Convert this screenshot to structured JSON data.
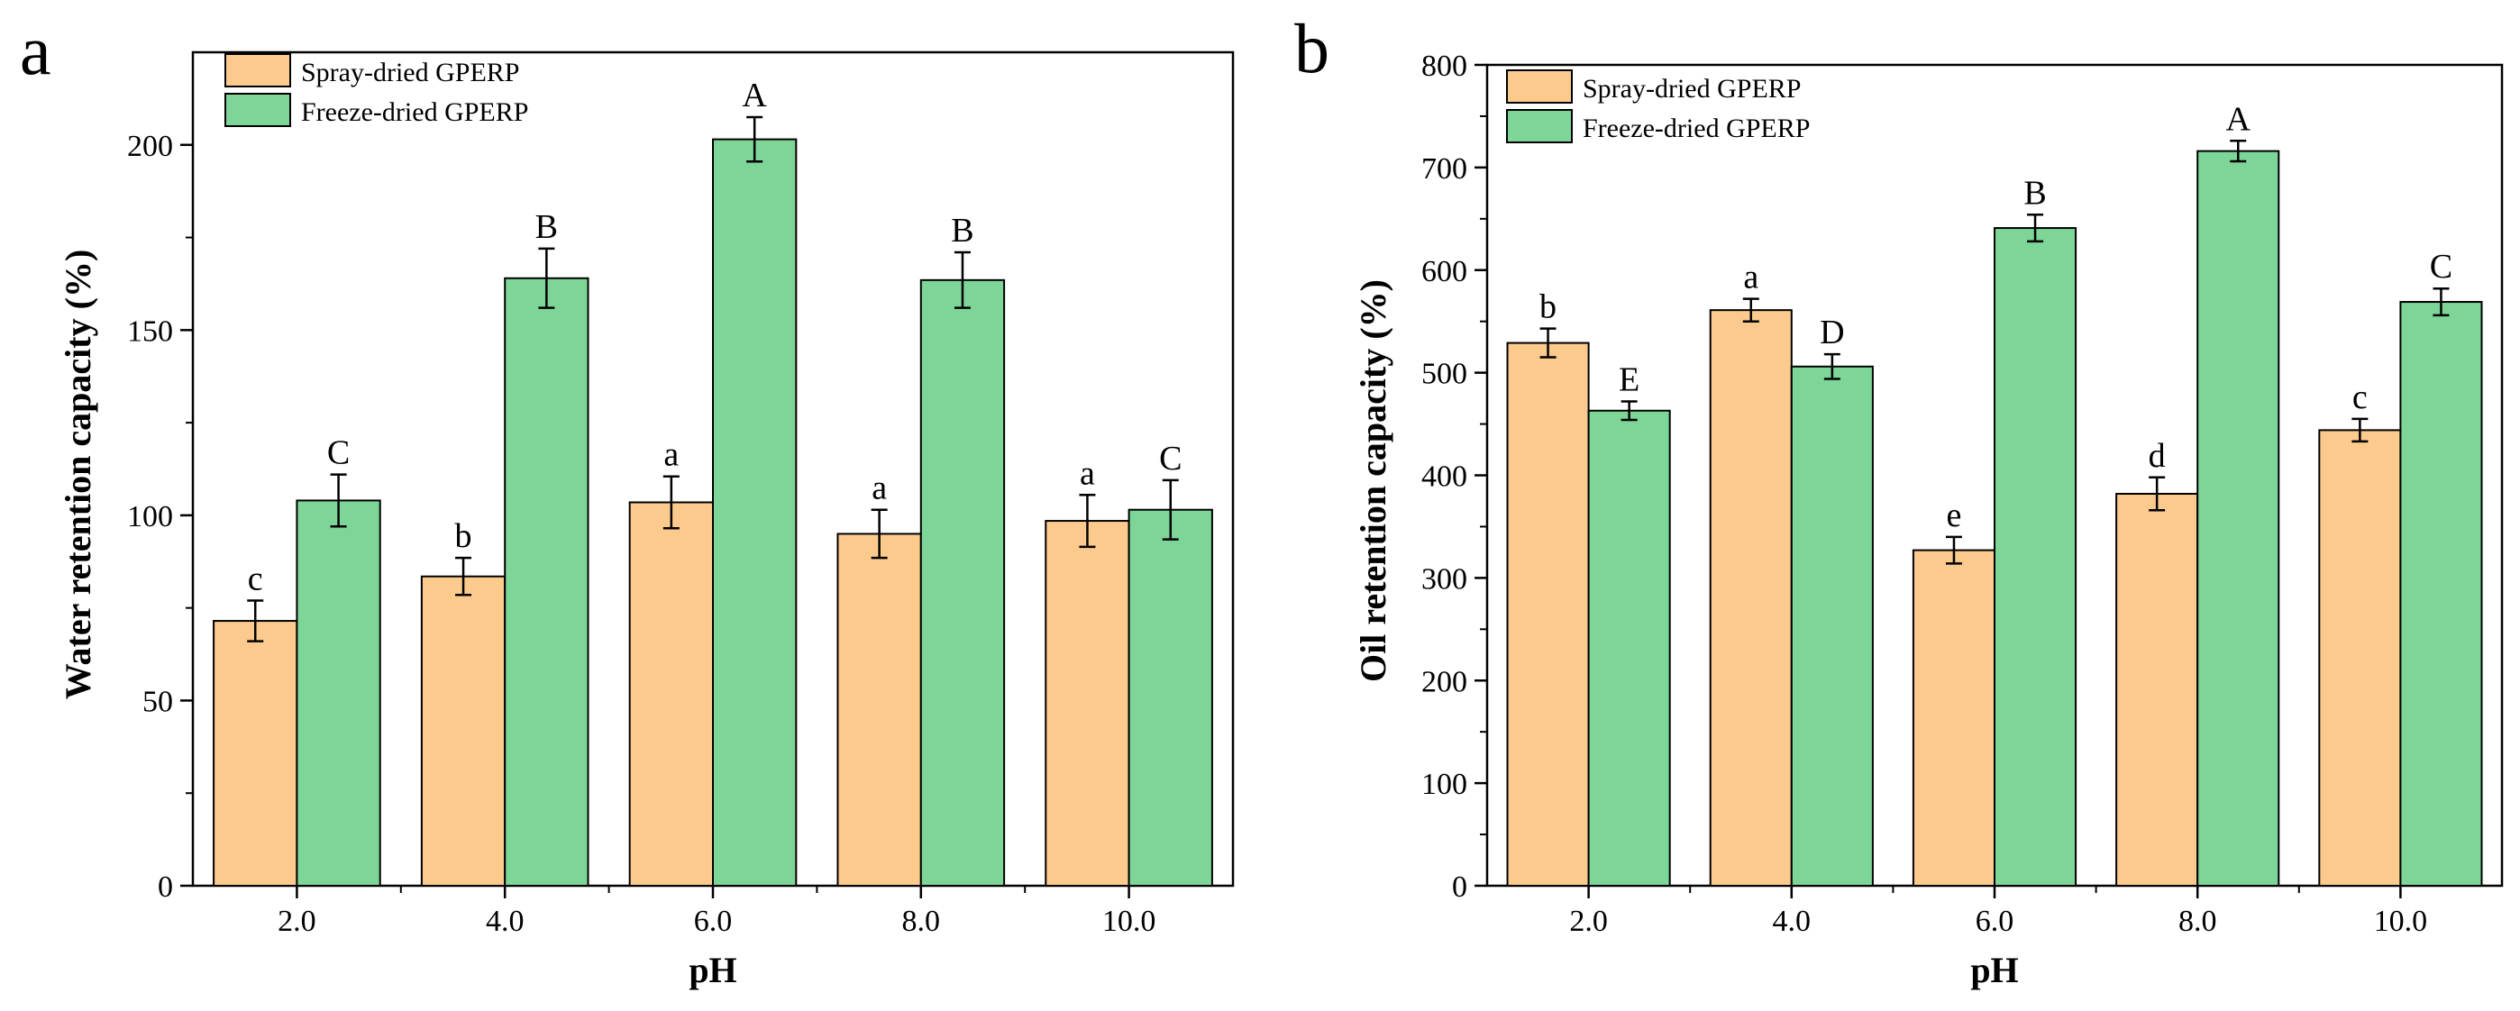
{
  "chart_data": [
    {
      "panel_label": "a",
      "type": "bar",
      "title": "",
      "xlabel": "pH",
      "ylabel": "Water retention capacity (%)",
      "categories": [
        "2.0",
        "4.0",
        "6.0",
        "8.0",
        "10.0"
      ],
      "ylim": [
        0,
        225
      ],
      "yticks": [
        0,
        50,
        100,
        150,
        200
      ],
      "legend_position": "top-left",
      "series": [
        {
          "name": "Spray-dried GPERP",
          "color": "#FDCA8E",
          "values": [
            71.5,
            83.5,
            103.5,
            95,
            98.5
          ],
          "errors": [
            5.5,
            5,
            7,
            6.5,
            7
          ],
          "letters": [
            "c",
            "b",
            "a",
            "a",
            "a"
          ]
        },
        {
          "name": "Freeze-dried GPERP",
          "color": "#7DD697",
          "values": [
            104,
            164,
            201.5,
            163.5,
            101.5
          ],
          "errors": [
            7,
            8,
            6,
            7.5,
            8
          ],
          "letters": [
            "C",
            "B",
            "A",
            "B",
            "C"
          ]
        }
      ]
    },
    {
      "panel_label": "b",
      "type": "bar",
      "title": "",
      "xlabel": "pH",
      "ylabel": "Oil retention capacity (%)",
      "categories": [
        "2.0",
        "4.0",
        "6.0",
        "8.0",
        "10.0"
      ],
      "ylim": [
        0,
        800
      ],
      "yticks": [
        0,
        100,
        200,
        300,
        400,
        500,
        600,
        700,
        800
      ],
      "legend_position": "top-left",
      "series": [
        {
          "name": "Spray-dried GPERP",
          "color": "#FDCA8E",
          "values": [
            529,
            561,
            327,
            382,
            444
          ],
          "errors": [
            14,
            11,
            13,
            16,
            11
          ],
          "letters": [
            "b",
            "a",
            "e",
            "d",
            "c"
          ]
        },
        {
          "name": "Freeze-dried GPERP",
          "color": "#7DD697",
          "values": [
            463,
            506,
            641,
            716,
            569
          ],
          "errors": [
            9,
            12,
            13,
            10,
            13
          ],
          "letters": [
            "E",
            "D",
            "B",
            "A",
            "C"
          ]
        }
      ]
    }
  ]
}
